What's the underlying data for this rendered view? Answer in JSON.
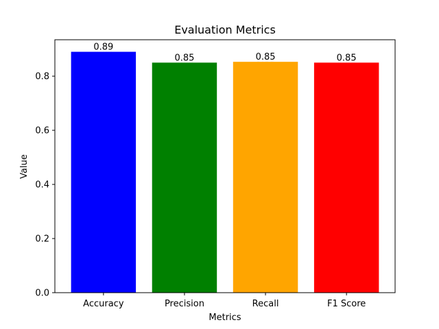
{
  "chart_data": {
    "type": "bar",
    "title": "Evaluation Metrics",
    "xlabel": "Metrics",
    "ylabel": "Value",
    "categories": [
      "Accuracy",
      "Precision",
      "Recall",
      "F1 Score"
    ],
    "values": [
      0.89,
      0.85,
      0.853,
      0.85
    ],
    "value_labels": [
      "0.89",
      "0.85",
      "0.85",
      "0.85"
    ],
    "colors": [
      "#0000ff",
      "#008000",
      "#ffa500",
      "#ff0000"
    ],
    "ylim": [
      0,
      0.9345
    ],
    "yticks": [
      0.0,
      0.2,
      0.4,
      0.6,
      0.8
    ],
    "ytick_labels": [
      "0.0",
      "0.2",
      "0.4",
      "0.6",
      "0.8"
    ],
    "grid": false,
    "legend": "none"
  }
}
